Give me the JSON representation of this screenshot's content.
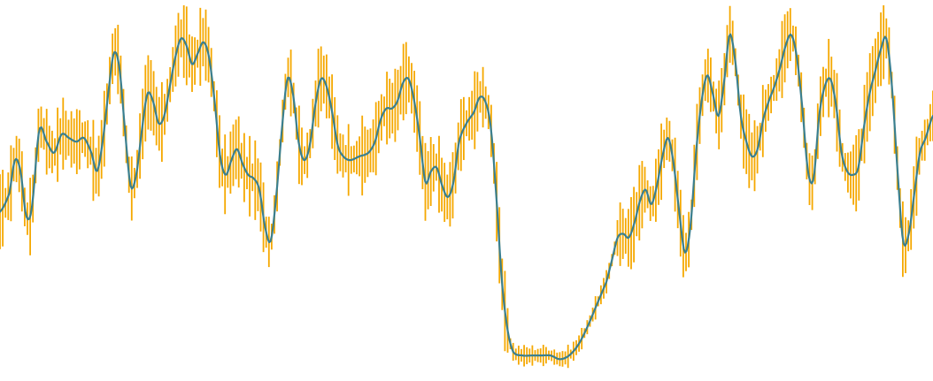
{
  "chart_data": {
    "type": "line",
    "axes_visible": false,
    "grid": false,
    "x_range": [
      0,
      1
    ],
    "y_range": [
      0,
      1
    ],
    "colors": {
      "line": "#3a7f8f",
      "error_bars": "#f5a800"
    },
    "series": [
      {
        "error_bars": true,
        "points": [
          [
            0.0,
            0.44
          ],
          [
            0.01,
            0.49
          ],
          [
            0.016,
            0.58
          ],
          [
            0.022,
            0.55
          ],
          [
            0.028,
            0.43
          ],
          [
            0.034,
            0.45
          ],
          [
            0.042,
            0.66
          ],
          [
            0.05,
            0.63
          ],
          [
            0.058,
            0.6
          ],
          [
            0.066,
            0.65
          ],
          [
            0.074,
            0.64
          ],
          [
            0.082,
            0.63
          ],
          [
            0.09,
            0.64
          ],
          [
            0.098,
            0.6
          ],
          [
            0.104,
            0.55
          ],
          [
            0.11,
            0.63
          ],
          [
            0.116,
            0.76
          ],
          [
            0.122,
            0.87
          ],
          [
            0.128,
            0.83
          ],
          [
            0.134,
            0.66
          ],
          [
            0.14,
            0.51
          ],
          [
            0.146,
            0.54
          ],
          [
            0.152,
            0.66
          ],
          [
            0.158,
            0.76
          ],
          [
            0.164,
            0.74
          ],
          [
            0.17,
            0.68
          ],
          [
            0.176,
            0.7
          ],
          [
            0.182,
            0.78
          ],
          [
            0.188,
            0.86
          ],
          [
            0.194,
            0.91
          ],
          [
            0.2,
            0.89
          ],
          [
            0.206,
            0.84
          ],
          [
            0.212,
            0.87
          ],
          [
            0.218,
            0.9
          ],
          [
            0.224,
            0.86
          ],
          [
            0.23,
            0.74
          ],
          [
            0.236,
            0.59
          ],
          [
            0.242,
            0.54
          ],
          [
            0.248,
            0.58
          ],
          [
            0.254,
            0.61
          ],
          [
            0.26,
            0.57
          ],
          [
            0.266,
            0.54
          ],
          [
            0.272,
            0.53
          ],
          [
            0.278,
            0.5
          ],
          [
            0.284,
            0.4
          ],
          [
            0.29,
            0.36
          ],
          [
            0.296,
            0.48
          ],
          [
            0.302,
            0.66
          ],
          [
            0.308,
            0.8
          ],
          [
            0.314,
            0.76
          ],
          [
            0.32,
            0.63
          ],
          [
            0.326,
            0.58
          ],
          [
            0.332,
            0.62
          ],
          [
            0.338,
            0.73
          ],
          [
            0.344,
            0.8
          ],
          [
            0.35,
            0.78
          ],
          [
            0.356,
            0.71
          ],
          [
            0.362,
            0.62
          ],
          [
            0.368,
            0.59
          ],
          [
            0.375,
            0.58
          ],
          [
            0.385,
            0.59
          ],
          [
            0.395,
            0.6
          ],
          [
            0.402,
            0.63
          ],
          [
            0.408,
            0.69
          ],
          [
            0.414,
            0.72
          ],
          [
            0.42,
            0.72
          ],
          [
            0.426,
            0.74
          ],
          [
            0.432,
            0.79
          ],
          [
            0.438,
            0.8
          ],
          [
            0.444,
            0.74
          ],
          [
            0.45,
            0.64
          ],
          [
            0.456,
            0.52
          ],
          [
            0.462,
            0.55
          ],
          [
            0.468,
            0.56
          ],
          [
            0.474,
            0.51
          ],
          [
            0.48,
            0.48
          ],
          [
            0.486,
            0.52
          ],
          [
            0.492,
            0.63
          ],
          [
            0.5,
            0.68
          ],
          [
            0.508,
            0.71
          ],
          [
            0.514,
            0.75
          ],
          [
            0.52,
            0.74
          ],
          [
            0.526,
            0.67
          ],
          [
            0.532,
            0.48
          ],
          [
            0.538,
            0.25
          ],
          [
            0.544,
            0.12
          ],
          [
            0.55,
            0.06
          ],
          [
            0.56,
            0.05
          ],
          [
            0.57,
            0.05
          ],
          [
            0.58,
            0.05
          ],
          [
            0.59,
            0.05
          ],
          [
            0.6,
            0.04
          ],
          [
            0.61,
            0.05
          ],
          [
            0.62,
            0.08
          ],
          [
            0.63,
            0.13
          ],
          [
            0.64,
            0.19
          ],
          [
            0.65,
            0.25
          ],
          [
            0.656,
            0.31
          ],
          [
            0.662,
            0.37
          ],
          [
            0.668,
            0.38
          ],
          [
            0.674,
            0.37
          ],
          [
            0.68,
            0.41
          ],
          [
            0.686,
            0.47
          ],
          [
            0.692,
            0.5
          ],
          [
            0.698,
            0.46
          ],
          [
            0.704,
            0.51
          ],
          [
            0.71,
            0.59
          ],
          [
            0.716,
            0.64
          ],
          [
            0.722,
            0.57
          ],
          [
            0.728,
            0.44
          ],
          [
            0.734,
            0.33
          ],
          [
            0.74,
            0.4
          ],
          [
            0.746,
            0.6
          ],
          [
            0.752,
            0.74
          ],
          [
            0.758,
            0.81
          ],
          [
            0.764,
            0.76
          ],
          [
            0.77,
            0.7
          ],
          [
            0.776,
            0.79
          ],
          [
            0.782,
            0.92
          ],
          [
            0.788,
            0.85
          ],
          [
            0.794,
            0.7
          ],
          [
            0.8,
            0.63
          ],
          [
            0.806,
            0.59
          ],
          [
            0.812,
            0.61
          ],
          [
            0.818,
            0.69
          ],
          [
            0.824,
            0.74
          ],
          [
            0.83,
            0.78
          ],
          [
            0.836,
            0.83
          ],
          [
            0.842,
            0.89
          ],
          [
            0.848,
            0.92
          ],
          [
            0.854,
            0.86
          ],
          [
            0.86,
            0.72
          ],
          [
            0.866,
            0.55
          ],
          [
            0.872,
            0.53
          ],
          [
            0.878,
            0.7
          ],
          [
            0.884,
            0.78
          ],
          [
            0.89,
            0.8
          ],
          [
            0.896,
            0.73
          ],
          [
            0.902,
            0.6
          ],
          [
            0.908,
            0.55
          ],
          [
            0.914,
            0.54
          ],
          [
            0.92,
            0.56
          ],
          [
            0.926,
            0.67
          ],
          [
            0.932,
            0.76
          ],
          [
            0.938,
            0.82
          ],
          [
            0.944,
            0.88
          ],
          [
            0.95,
            0.91
          ],
          [
            0.956,
            0.78
          ],
          [
            0.962,
            0.55
          ],
          [
            0.968,
            0.36
          ],
          [
            0.974,
            0.38
          ],
          [
            0.98,
            0.49
          ],
          [
            0.986,
            0.6
          ],
          [
            0.992,
            0.64
          ],
          [
            1.0,
            0.7
          ]
        ]
      }
    ]
  }
}
